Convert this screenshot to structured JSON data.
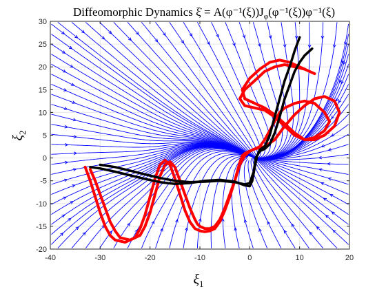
{
  "chart_data": {
    "type": "line",
    "title": "Diffeomorphic Dynamics $\\dot{\\xi} = A(\\phi^{-1}(\\xi))J_{\\phi}(\\phi^{-1}(\\xi))\\phi^{-1}(\\xi)$",
    "title_display": "Diffeomorphic Dynamics ξ̇ = A(φ⁻¹(ξ))J",
    "title_display_sub": "φ",
    "title_display_tail": "(φ⁻¹(ξ))φ⁻¹(ξ)",
    "xlabel": "ξ",
    "xlabel_sub": "1",
    "ylabel": "ξ",
    "ylabel_sub": "2",
    "xlim": [
      -40,
      20
    ],
    "ylim": [
      -20,
      30
    ],
    "xticks": [
      -40,
      -30,
      -20,
      -10,
      0,
      10,
      20
    ],
    "yticks": [
      -20,
      -15,
      -10,
      -5,
      0,
      5,
      10,
      15,
      20,
      25,
      30
    ],
    "grid": true,
    "colors": {
      "streamlines": "#0000ff",
      "demonstrations": "#ff0000",
      "reproductions": "#000000",
      "grid": "#e6e6e6",
      "axis": "#262626"
    },
    "attractor": [
      0,
      0
    ],
    "series": [
      {
        "kind": "demonstration",
        "x": [
          -32,
          -31,
          -30,
          -29,
          -28,
          -27,
          -26,
          -24,
          -22,
          -21,
          -20,
          -19,
          -18,
          -17,
          -16,
          -15,
          -14,
          -13,
          -12,
          -11,
          -10.5,
          -10,
          -9,
          -8,
          -7,
          -6,
          -5,
          -4,
          -3,
          -2,
          -1.5,
          -1,
          0,
          1,
          2,
          3,
          4,
          5,
          6,
          7,
          9,
          11,
          13,
          15,
          16,
          15,
          13,
          11,
          9,
          7,
          5,
          3,
          1,
          -1,
          -2,
          -1,
          1,
          3,
          5,
          7,
          9,
          11
        ],
        "y": [
          -2.5,
          -5,
          -8,
          -11,
          -14,
          -16,
          -17.5,
          -18,
          -17,
          -15,
          -12,
          -8,
          -4,
          -1.5,
          -0.8,
          -2,
          -5,
          -8,
          -11,
          -13.5,
          -14.5,
          -15,
          -15.5,
          -15.5,
          -15,
          -13.5,
          -11,
          -8,
          -5,
          -1,
          0.5,
          1,
          1.5,
          2,
          2.5,
          4,
          6,
          8,
          10,
          11,
          12,
          12.5,
          12,
          10,
          8,
          6,
          4.5,
          4,
          5,
          7,
          9,
          10.5,
          11,
          11.5,
          13,
          15,
          17,
          19,
          20,
          20.5,
          20,
          19.5
        ]
      },
      {
        "kind": "demonstration",
        "x": [
          -33,
          -32,
          -31,
          -30,
          -29,
          -28,
          -27,
          -25,
          -23,
          -22,
          -21,
          -20,
          -19,
          -18,
          -17,
          -16,
          -15,
          -14,
          -13,
          -12,
          -11,
          -10,
          -9,
          -8,
          -7,
          -6,
          -5,
          -4,
          -3,
          -2,
          -1,
          0,
          1,
          3,
          5,
          7,
          9,
          11,
          13,
          15,
          17,
          18,
          17,
          15,
          13,
          11,
          9,
          7,
          5,
          3,
          1,
          -1,
          -1.5,
          0,
          2,
          4,
          6,
          8,
          10,
          12,
          13
        ],
        "y": [
          -2,
          -5,
          -8.5,
          -12,
          -15,
          -17,
          -18,
          -18.5,
          -17.5,
          -15.5,
          -12.5,
          -8.5,
          -4.5,
          -1.5,
          -0.5,
          -1.5,
          -4.5,
          -8,
          -11.5,
          -14,
          -15.5,
          -16,
          -16.2,
          -16,
          -15.5,
          -14,
          -11.5,
          -8.5,
          -5,
          -1.5,
          0.5,
          1.5,
          2,
          2.5,
          4,
          7,
          9.5,
          11.5,
          13,
          13.5,
          12.5,
          10,
          7,
          5,
          4,
          4,
          5.5,
          7.5,
          9.5,
          11,
          12,
          13,
          15,
          17.5,
          19.5,
          21,
          21.5,
          21,
          20,
          19,
          18.5
        ]
      },
      {
        "kind": "reproduction",
        "x": [
          -32,
          -30,
          -27,
          -24,
          -21,
          -18,
          -15,
          -12,
          -9,
          -6,
          -3,
          -1,
          0,
          0.5,
          1,
          1.5,
          2,
          3,
          4,
          5,
          6,
          7,
          8,
          9,
          10
        ],
        "y": [
          -2,
          -2.3,
          -3,
          -3.8,
          -4.6,
          -5.3,
          -5.7,
          -5.5,
          -5,
          -4.8,
          -5.2,
          -6,
          -6.2,
          -5,
          -2,
          0.5,
          1.8,
          2.5,
          5,
          9,
          13,
          17,
          20,
          23.5,
          26.5
        ]
      },
      {
        "kind": "reproduction",
        "x": [
          -30,
          -27,
          -24,
          -21,
          -18,
          -15,
          -12,
          -9,
          -6,
          -3,
          -1,
          0,
          0.8,
          1.2,
          2,
          3,
          4,
          5,
          6,
          7,
          8,
          9,
          10,
          11,
          12.5
        ],
        "y": [
          -1.5,
          -2,
          -2.8,
          -3.6,
          -4.4,
          -5,
          -5.3,
          -5.2,
          -5,
          -5.3,
          -5.8,
          -5.5,
          -3,
          0,
          1.5,
          2,
          3,
          5.5,
          9,
          13,
          16,
          19,
          21,
          22.5,
          24
        ]
      }
    ]
  }
}
